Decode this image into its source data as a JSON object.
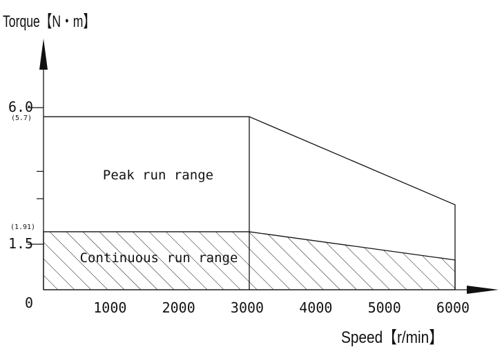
{
  "chart_data": {
    "type": "area",
    "title": "",
    "ylabel": "Torque【N・m】",
    "xlabel": "Speed【r/min】",
    "xlim": [
      0,
      6200
    ],
    "ylim": [
      0,
      8.2
    ],
    "x_ticks": [
      1000,
      2000,
      3000,
      4000,
      5000,
      6000
    ],
    "x_tick_labels": [
      "1000",
      "2000",
      "3000",
      "4000",
      "5000",
      "6000"
    ],
    "y_ticks": [
      {
        "value": 6.0,
        "label": "6.0",
        "sublabel": "(5.7)"
      },
      {
        "value": 1.5,
        "label": "1.5",
        "sublabel": "(1.91)"
      }
    ],
    "y_minor_ticks": [
      3.9,
      3.0
    ],
    "origin_label": "0",
    "series": [
      {
        "name": "Peak run range",
        "style": "outline",
        "x": [
          0,
          3000,
          6000
        ],
        "y": [
          5.7,
          5.7,
          2.8
        ]
      },
      {
        "name": "Continuous run range",
        "style": "hatched",
        "x": [
          0,
          3000,
          6000
        ],
        "y": [
          1.91,
          1.91,
          0.98
        ]
      }
    ],
    "annotations": [
      {
        "text": "Peak run range",
        "x": 1500,
        "y": 3.7
      },
      {
        "text": "Continuous run range",
        "x": 1500,
        "y": 1.2
      }
    ],
    "grid": false,
    "legend": "none"
  },
  "colors": {
    "line": "#111111",
    "hatch": "#222222",
    "background": "#ffffff"
  }
}
